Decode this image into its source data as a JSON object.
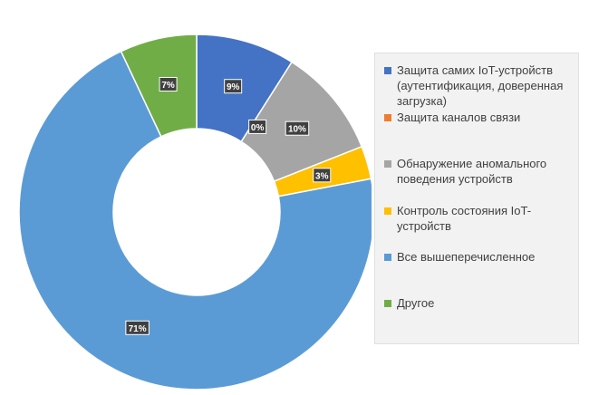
{
  "chart_data": {
    "type": "pie",
    "donut": true,
    "title": "",
    "legend_position": "right",
    "categories": [
      "Защита самих IoT-устройств (аутентификация, доверенная загрузка)",
      "Защита каналов связи",
      "Обнаружение аномального поведения устройств",
      "Контроль состояния IoT-устройств",
      "Все вышеперечисленное",
      "Другое"
    ],
    "values": [
      9,
      0,
      10,
      3,
      71,
      7
    ],
    "data_labels": [
      "9%",
      "0%",
      "10%",
      "3%",
      "71%",
      "7%"
    ],
    "colors": [
      "#4472c4",
      "#ed7d31",
      "#a5a5a5",
      "#ffc000",
      "#5b9bd5",
      "#70ad47"
    ]
  }
}
